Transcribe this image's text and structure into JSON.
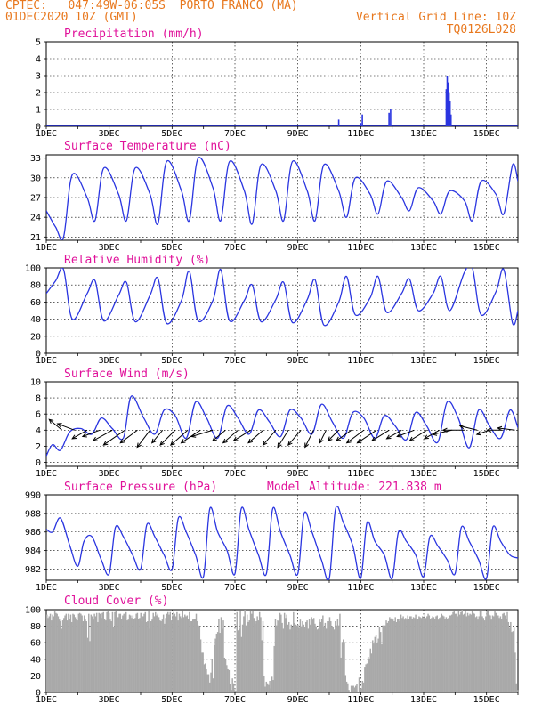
{
  "header": {
    "line1": "CPTEC:   047:49W-06:05S  PORTO FRANCO (MA)",
    "line2": "01DEC2020 10Z (GMT)",
    "grid_note": "Vertical Grid Line: 10Z",
    "code": "TQ0126L028"
  },
  "colors": {
    "line": "#2a35e0",
    "header": "#e8781e",
    "title": "#e0119a",
    "cloud": "#a9a9a9",
    "wind": "#000000"
  },
  "x_ticks": [
    "1DEC",
    "3DEC",
    "5DEC",
    "7DEC",
    "9DEC",
    "11DEC",
    "13DEC",
    "15DEC"
  ],
  "x_tick_days": [
    1,
    3,
    5,
    7,
    9,
    11,
    13,
    15
  ],
  "x_range_days": [
    1.0,
    16.0
  ],
  "chart_data": [
    {
      "type": "bar",
      "title": "Precipitation (mm/h)",
      "ylim": [
        0,
        5
      ],
      "yticks": [
        0,
        1,
        2,
        3,
        4,
        5
      ],
      "x": [
        10.3,
        11.0,
        11.05,
        11.9,
        11.95,
        13.72,
        13.75,
        13.78,
        13.81,
        13.84,
        13.87
      ],
      "values": [
        0.4,
        0.2,
        0.7,
        0.8,
        1.0,
        2.2,
        3.0,
        2.6,
        2.0,
        1.5,
        0.7
      ]
    },
    {
      "type": "line",
      "title": "Surface Temperature (nC)",
      "ylim": [
        20.5,
        33.5
      ],
      "yticks": [
        21,
        24,
        27,
        30,
        33
      ],
      "x": [
        1.0,
        1.3,
        1.55,
        1.83,
        2.3,
        2.55,
        2.83,
        3.3,
        3.55,
        3.83,
        4.3,
        4.55,
        4.83,
        5.3,
        5.55,
        5.83,
        6.3,
        6.55,
        6.83,
        7.3,
        7.55,
        7.83,
        8.3,
        8.55,
        8.83,
        9.3,
        9.55,
        9.83,
        10.3,
        10.55,
        10.83,
        11.3,
        11.55,
        11.83,
        12.3,
        12.55,
        12.83,
        13.3,
        13.55,
        13.83,
        14.3,
        14.55,
        14.83,
        15.3,
        15.55,
        15.83,
        16.0
      ],
      "values": [
        25.0,
        22.5,
        21.0,
        30.5,
        27.0,
        23.5,
        31.5,
        27.5,
        23.5,
        31.5,
        27.5,
        23.0,
        32.5,
        28.0,
        23.5,
        33.0,
        28.5,
        23.5,
        32.5,
        28.0,
        23.0,
        32.0,
        28.0,
        23.5,
        32.5,
        28.0,
        23.5,
        32.0,
        28.0,
        24.0,
        30.0,
        27.5,
        24.5,
        29.5,
        27.0,
        25.0,
        28.5,
        26.5,
        24.5,
        28.0,
        26.5,
        23.5,
        29.5,
        27.5,
        24.5,
        32.0,
        29.5
      ]
    },
    {
      "type": "line",
      "title": "Relative Humidity (%)",
      "ylim": [
        0,
        100
      ],
      "yticks": [
        0,
        20,
        40,
        60,
        80,
        100
      ],
      "x": [
        1.0,
        1.3,
        1.55,
        1.83,
        2.3,
        2.55,
        2.83,
        3.3,
        3.55,
        3.83,
        4.3,
        4.55,
        4.83,
        5.3,
        5.55,
        5.83,
        6.3,
        6.55,
        6.83,
        7.3,
        7.55,
        7.83,
        8.3,
        8.55,
        8.83,
        9.3,
        9.55,
        9.83,
        10.3,
        10.55,
        10.83,
        11.3,
        11.55,
        11.83,
        12.3,
        12.55,
        12.83,
        13.3,
        13.55,
        13.83,
        14.3,
        14.55,
        14.83,
        15.3,
        15.55,
        15.83,
        16.0
      ],
      "values": [
        70,
        85,
        98,
        40,
        70,
        85,
        38,
        68,
        83,
        37,
        68,
        88,
        35,
        62,
        96,
        38,
        62,
        98,
        38,
        62,
        80,
        37,
        63,
        83,
        36,
        63,
        86,
        33,
        60,
        90,
        45,
        65,
        90,
        48,
        70,
        87,
        50,
        70,
        90,
        50,
        95,
        100,
        45,
        72,
        98,
        35,
        50
      ]
    },
    {
      "type": "line",
      "title": "Surface Wind (m/s)",
      "ylim": [
        -0.5,
        10
      ],
      "yticks": [
        0,
        2,
        4,
        6,
        8,
        10
      ],
      "x": [
        1.0,
        1.2,
        1.45,
        1.75,
        2.1,
        2.45,
        2.75,
        3.1,
        3.45,
        3.7,
        4.1,
        4.45,
        4.75,
        5.1,
        5.45,
        5.75,
        6.1,
        6.45,
        6.75,
        7.1,
        7.45,
        7.75,
        8.1,
        8.45,
        8.75,
        9.1,
        9.45,
        9.75,
        10.1,
        10.45,
        10.75,
        11.1,
        11.45,
        11.75,
        12.1,
        12.45,
        12.75,
        13.1,
        13.45,
        13.75,
        14.1,
        14.45,
        14.75,
        15.1,
        15.45,
        15.75,
        16.0
      ],
      "values": [
        0.8,
        2.2,
        1.5,
        3.8,
        4.2,
        3.5,
        5.5,
        4.2,
        3.0,
        8.2,
        5.5,
        3.5,
        6.5,
        5.8,
        3.0,
        7.5,
        5.5,
        3.0,
        7.0,
        5.5,
        3.5,
        6.5,
        5.0,
        3.2,
        6.5,
        5.5,
        3.5,
        7.2,
        5.0,
        3.0,
        6.2,
        5.5,
        3.0,
        5.8,
        4.5,
        2.8,
        6.2,
        4.5,
        2.5,
        7.5,
        5.5,
        1.8,
        6.5,
        4.5,
        3.0,
        6.5,
        4.3
      ]
    },
    {
      "type": "line",
      "title": "Surface Pressure (hPa)",
      "ylim": [
        980.8,
        990
      ],
      "yticks": [
        982,
        984,
        986,
        988,
        990
      ],
      "x": [
        1.0,
        1.2,
        1.45,
        1.75,
        2.0,
        2.2,
        2.45,
        2.75,
        3.0,
        3.2,
        3.45,
        3.75,
        4.0,
        4.2,
        4.45,
        4.75,
        5.0,
        5.2,
        5.45,
        5.75,
        6.0,
        6.2,
        6.45,
        6.75,
        7.0,
        7.2,
        7.45,
        7.75,
        8.0,
        8.2,
        8.45,
        8.75,
        9.0,
        9.2,
        9.45,
        9.75,
        10.0,
        10.2,
        10.45,
        10.75,
        11.0,
        11.2,
        11.45,
        11.75,
        12.0,
        12.2,
        12.45,
        12.75,
        13.0,
        13.2,
        13.45,
        13.75,
        14.0,
        14.2,
        14.45,
        14.75,
        15.0,
        15.2,
        15.45,
        15.75,
        16.0
      ],
      "values": [
        986.3,
        986.0,
        987.5,
        984.5,
        982.3,
        985.0,
        985.5,
        983.0,
        981.5,
        986.5,
        985.5,
        983.5,
        982.0,
        986.8,
        985.5,
        983.5,
        982.0,
        987.5,
        986.0,
        983.5,
        981.2,
        988.5,
        986.0,
        984.0,
        981.5,
        988.5,
        986.2,
        983.5,
        981.5,
        988.5,
        986.0,
        983.5,
        981.5,
        988.0,
        986.0,
        983.0,
        981.0,
        988.5,
        987.0,
        984.5,
        981.0,
        987.0,
        985.0,
        983.5,
        981.0,
        986.0,
        985.0,
        983.5,
        981.2,
        985.5,
        984.5,
        983.0,
        981.5,
        986.5,
        985.0,
        983.0,
        981.0,
        986.5,
        985.0,
        983.5,
        983.2
      ]
    },
    {
      "type": "bar",
      "title": "Cloud Cover (%)",
      "ylim": [
        0,
        100
      ],
      "yticks": [
        0,
        20,
        40,
        60,
        80,
        100
      ],
      "bar_interval_hours": 1,
      "values": [
        94,
        90,
        92,
        95,
        87,
        94,
        92,
        98,
        96,
        95,
        92,
        88,
        86,
        77,
        87,
        90,
        93,
        95,
        87,
        95,
        89,
        94,
        85,
        95,
        94,
        91,
        88,
        87,
        95,
        96,
        95,
        93,
        86,
        93,
        88,
        86,
        66,
        95,
        62,
        94,
        92,
        88,
        95,
        92,
        96,
        85,
        96,
        95,
        90,
        96,
        97,
        89,
        87,
        97,
        98,
        96,
        88,
        86,
        97,
        79,
        97,
        98,
        90,
        91,
        95,
        95,
        89,
        93,
        95,
        95,
        97,
        87,
        88,
        94,
        93,
        90,
        93,
        89,
        90,
        95,
        96,
        89,
        90,
        96,
        86,
        92,
        95,
        97,
        85,
        86,
        98,
        77,
        86,
        88,
        96,
        92,
        97,
        93,
        95,
        91,
        87,
        86,
        88,
        94,
        83,
        90,
        95,
        97,
        94,
        97,
        87,
        93,
        97,
        95,
        92,
        97,
        87,
        95,
        92,
        90,
        99,
        91,
        94,
        92,
        93,
        89,
        97,
        86,
        86,
        88,
        89,
        89,
        95,
        86,
        81,
        80,
        64,
        48,
        48,
        34,
        35,
        28,
        22,
        22,
        12,
        24,
        40,
        17,
        57,
        65,
        71,
        73,
        89,
        72,
        91,
        77,
        87,
        42,
        40,
        33,
        28,
        27,
        10,
        3,
        17,
        11,
        3,
        2,
        97,
        75,
        77,
        99,
        67,
        82,
        92,
        100,
        81,
        94,
        85,
        87,
        98,
        95,
        98,
        90,
        83,
        86,
        92,
        87,
        97,
        91,
        63,
        86,
        20,
        7,
        13,
        11,
        9,
        14,
        5,
        19,
        15,
        56,
        89,
        81,
        87,
        86,
        96,
        94,
        84,
        77,
        96,
        90,
        94,
        82,
        85,
        76,
        82,
        79,
        97,
        84,
        82,
        81,
        82,
        78,
        88,
        80,
        86,
        82,
        79,
        85,
        87,
        77,
        89,
        82,
        91,
        88,
        90,
        83,
        80,
        76,
        77,
        88,
        85,
        89,
        93,
        80,
        84,
        77,
        86,
        86,
        91,
        86,
        80,
        79,
        76,
        86,
        81,
        89,
        81,
        95,
        42,
        61,
        64,
        61,
        21,
        13,
        11,
        3,
        1,
        8,
        8,
        8,
        6,
        8,
        10,
        0,
        18,
        5,
        5,
        14,
        12,
        30,
        34,
        35,
        43,
        41,
        53,
        47,
        63,
        59,
        67,
        69,
        60,
        65,
        79,
        73,
        58,
        81,
        79,
        81,
        87,
        84,
        86,
        91,
        89,
        90,
        88,
        86,
        91,
        85,
        89,
        89,
        86,
        94,
        90,
        92,
        88,
        90,
        88,
        93,
        89,
        92,
        92,
        89,
        91,
        90,
        94,
        88,
        89,
        92,
        91,
        90,
        92,
        89,
        93,
        90,
        92,
        95,
        93,
        89,
        90,
        92,
        91,
        89,
        92,
        93,
        88,
        90,
        91,
        95,
        93,
        92,
        89,
        91,
        89,
        90,
        93,
        93,
        94,
        97,
        98,
        95,
        95,
        92,
        98,
        94,
        97,
        100,
        94,
        95,
        99,
        92,
        96,
        93,
        95,
        94,
        99,
        96,
        95,
        91,
        92,
        88,
        92,
        98,
        98,
        92,
        90,
        87,
        92,
        99,
        99,
        94,
        93,
        88,
        93,
        92,
        98,
        96,
        93,
        93,
        90,
        92,
        89,
        95,
        96,
        93,
        89,
        97,
        85,
        78,
        85,
        73,
        74,
        78,
        48,
        11,
        3
      ]
    }
  ],
  "panel_titles": {
    "precip": "Precipitation (mm/h)",
    "temp": "Surface Temperature (nC)",
    "rh": "Relative Humidity (%)",
    "wind": "Surface Wind (m/s)",
    "pressure": "Surface Pressure (hPa)",
    "altitude": "Model Altitude: 221.838 m",
    "cloud": "Cloud Cover (%)"
  },
  "wind_vectors": {
    "x": [
      1.5,
      1.9,
      2.3,
      2.7,
      3.1,
      3.5,
      3.9,
      4.3,
      4.7,
      5.1,
      5.5,
      5.9,
      6.3,
      6.7,
      7.1,
      7.5,
      7.9,
      8.3,
      8.7,
      9.1,
      9.5,
      9.9,
      10.3,
      10.7,
      11.1,
      11.5,
      11.9,
      12.3,
      12.7,
      13.1,
      13.5,
      13.9,
      14.3,
      14.7,
      15.1,
      15.5,
      15.9
    ],
    "u": [
      -0.6,
      -0.8,
      -0.7,
      -0.8,
      -0.9,
      -1.0,
      -0.8,
      -0.6,
      -0.5,
      -0.7,
      -0.8,
      -0.9,
      -1.0,
      -0.6,
      -0.7,
      -0.8,
      -0.7,
      -0.6,
      -0.5,
      -0.6,
      -0.4,
      -0.3,
      -0.5,
      -0.7,
      -0.8,
      -0.9,
      -0.8,
      -0.7,
      -0.8,
      -0.8,
      -0.7,
      -0.9,
      -1.0,
      -0.8,
      -0.6,
      -0.7,
      -0.8
    ],
    "v": [
      0.5,
      0.3,
      -0.4,
      -0.3,
      -0.5,
      -0.7,
      -0.6,
      -0.8,
      -0.6,
      -0.7,
      -0.7,
      -0.6,
      -0.3,
      -0.5,
      -0.6,
      -0.5,
      -0.6,
      -0.7,
      -0.8,
      -0.7,
      -0.8,
      -0.6,
      -0.5,
      -0.5,
      -0.6,
      -0.6,
      -0.5,
      -0.4,
      -0.3,
      -0.5,
      -0.4,
      -0.2,
      0.0,
      0.2,
      -0.2,
      0.0,
      0.1
    ]
  }
}
